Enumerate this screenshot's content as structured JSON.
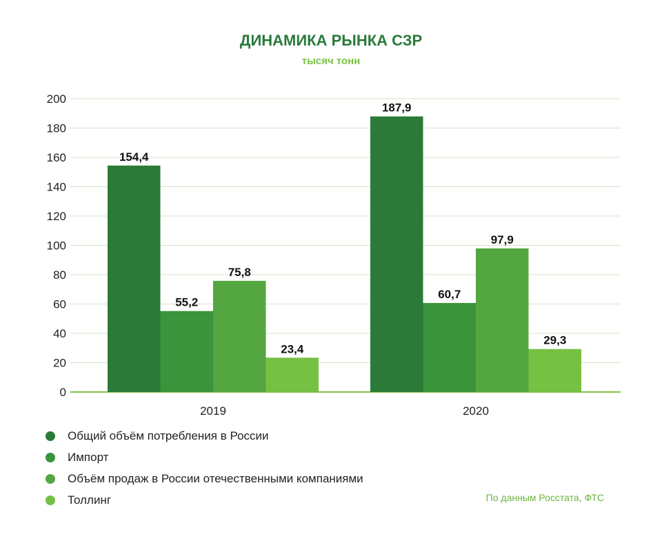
{
  "chart_data": {
    "type": "bar",
    "title": "ДИНАМИКА РЫНКА СЗР",
    "subtitle": "тысяч тонн",
    "categories": [
      "2019",
      "2020"
    ],
    "series": [
      {
        "name": "Общий объём потребления в России",
        "color": "#2b7a37",
        "values": [
          154.4,
          187.9
        ],
        "labels": [
          "154,4",
          "187,9"
        ]
      },
      {
        "name": "Импорт",
        "color": "#3a943b",
        "values": [
          55.2,
          60.7
        ],
        "labels": [
          "55,2",
          "60,7"
        ]
      },
      {
        "name": "Объём продаж в России отечественными компаниями",
        "color": "#54a640",
        "values": [
          75.8,
          97.9
        ],
        "labels": [
          "75,8",
          "97,9"
        ]
      },
      {
        "name": "Толлинг",
        "color": "#76c043",
        "values": [
          23.4,
          29.3
        ],
        "labels": [
          "23,4",
          "29,3"
        ]
      }
    ],
    "yticks": [
      "0",
      "20",
      "40",
      "60",
      "80",
      "100",
      "120",
      "140",
      "160",
      "180",
      "200"
    ],
    "ylim": [
      0,
      200
    ],
    "grid": true,
    "legend": "bottom-left",
    "source": "По данным Росстата, ФТС"
  }
}
